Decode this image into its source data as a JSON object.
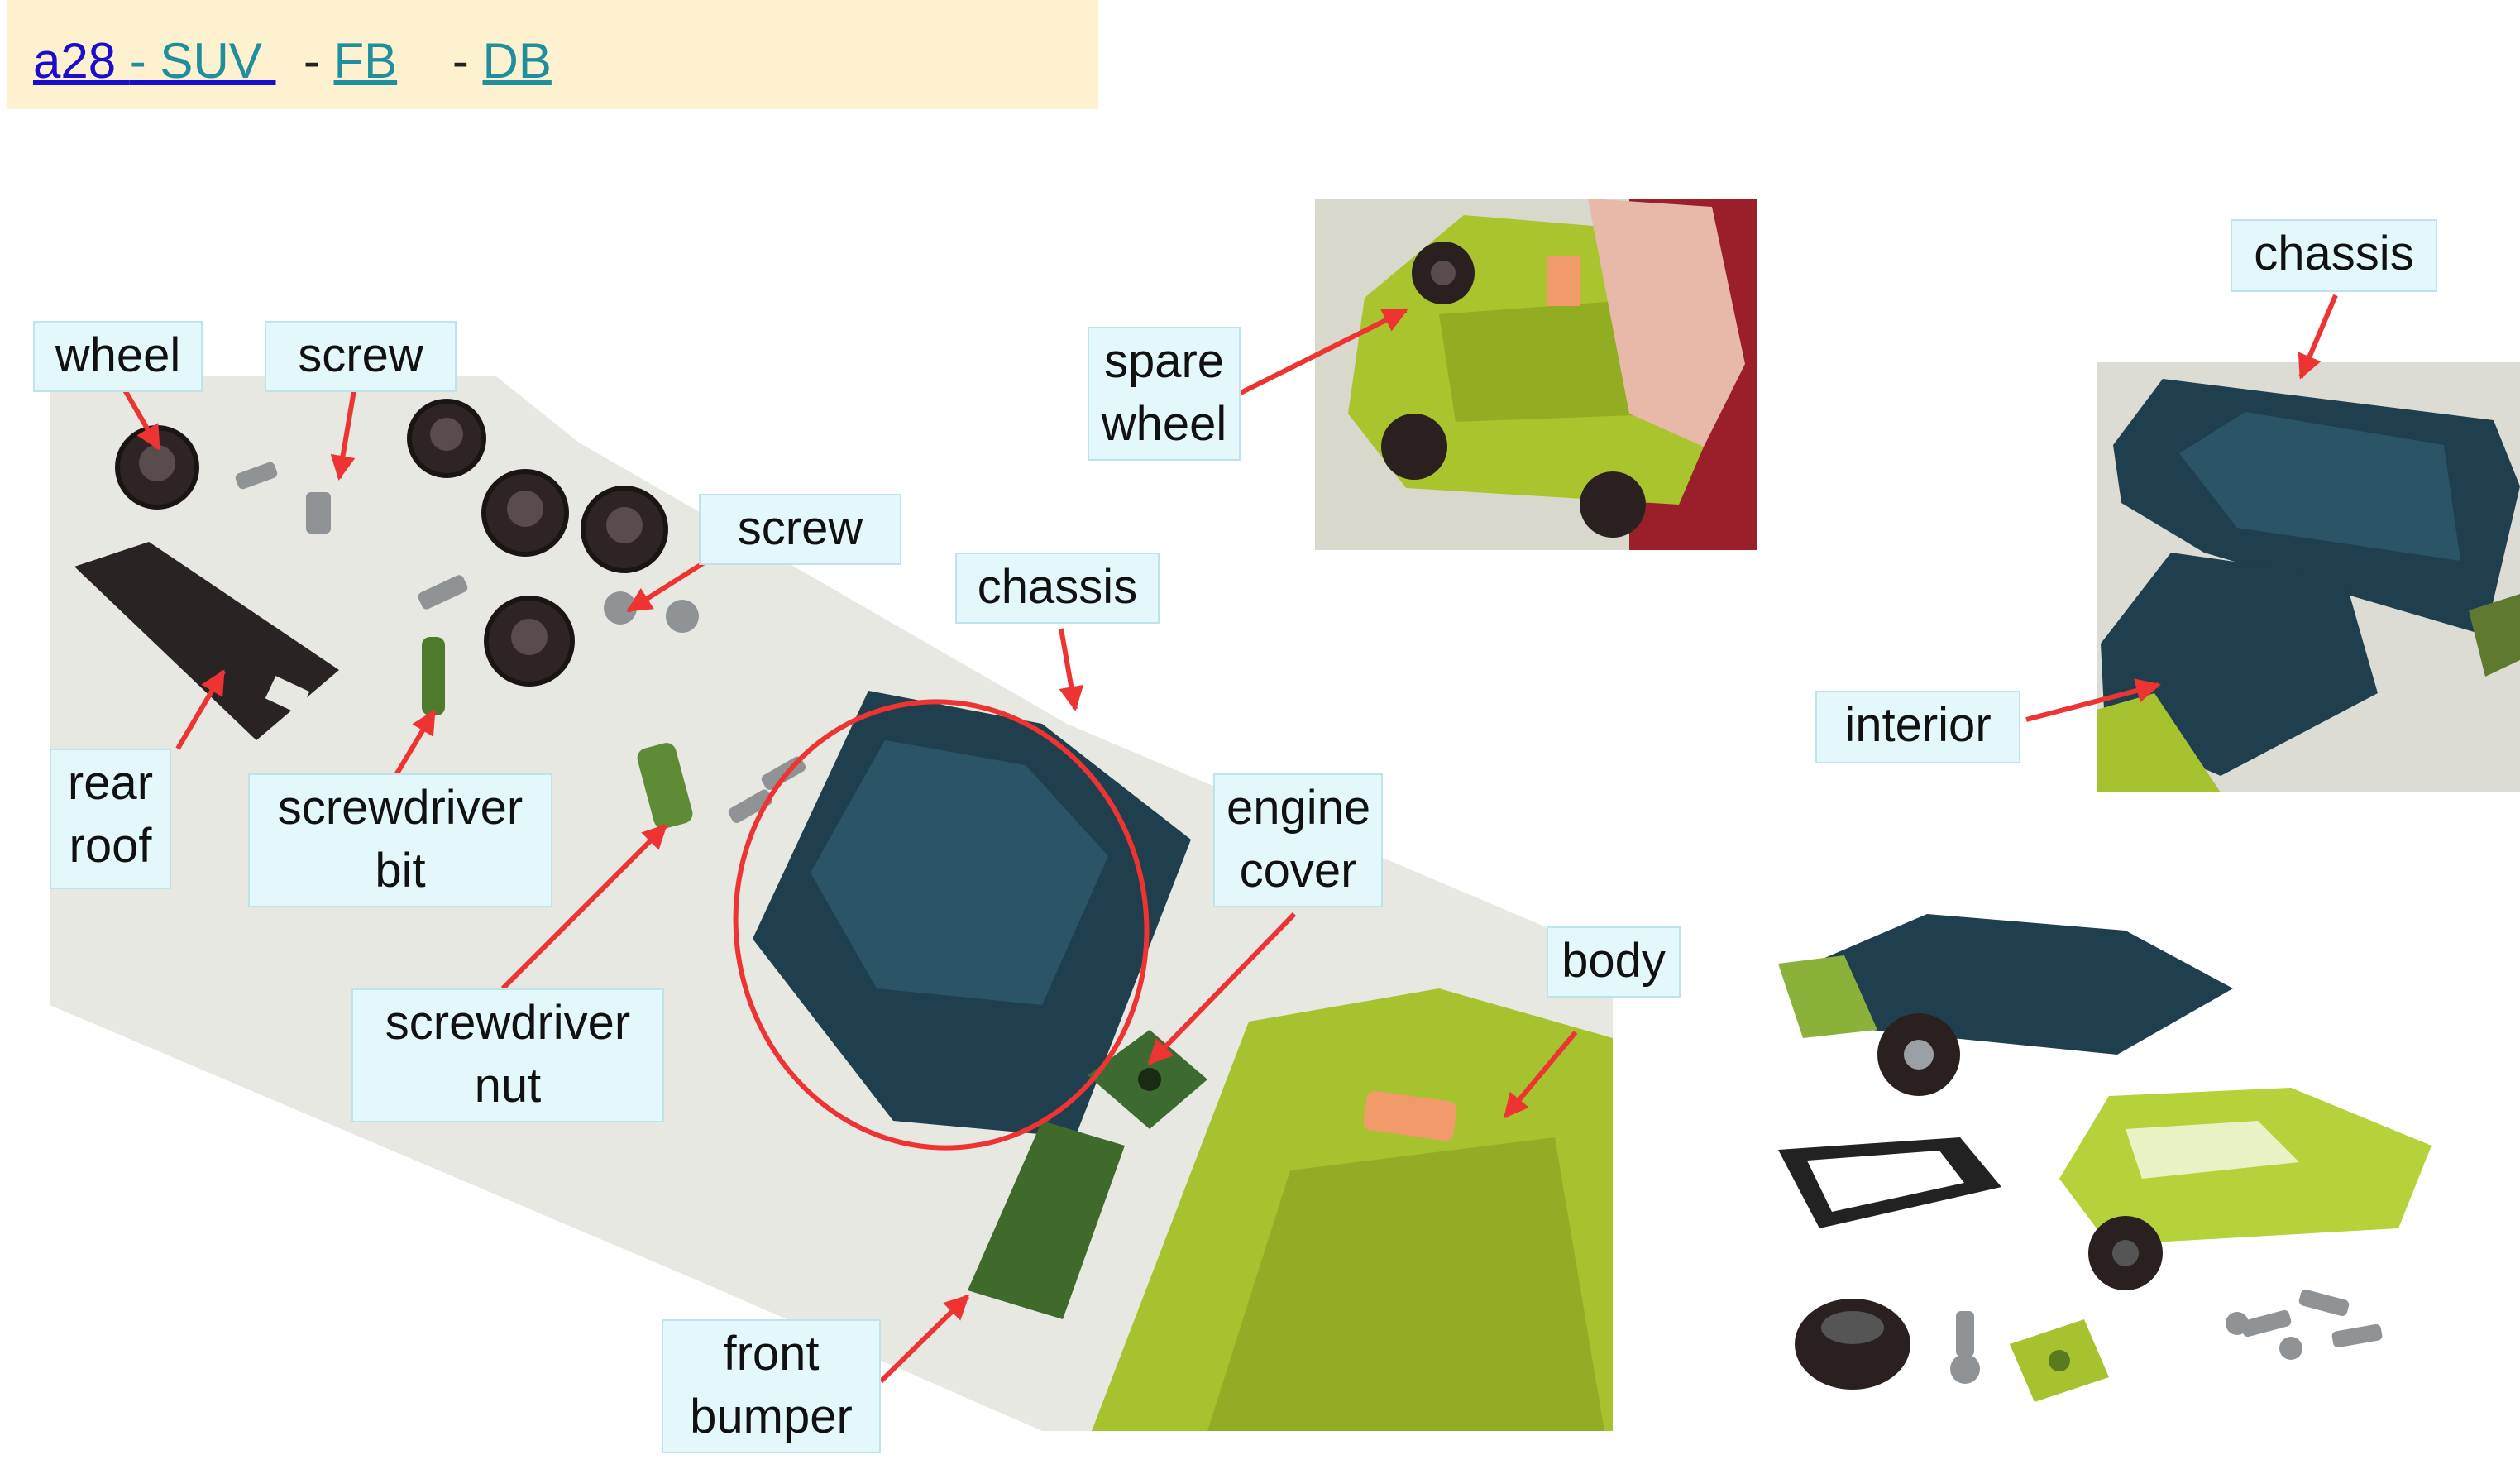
{
  "header": {
    "link_main": "a28 ",
    "link_suv": "- SUV ",
    "sep1": "-",
    "link_fb": "FB",
    "sep2": "-",
    "link_db": "DB"
  },
  "labels": {
    "wheel": "wheel",
    "screw_top": "screw",
    "screw_mid": "screw",
    "rear_roof_1": "rear",
    "rear_roof_2": "roof",
    "screwdriver_bit_1": "screwdriver",
    "screwdriver_bit_2": "bit",
    "screwdriver_nut_1": "screwdriver",
    "screwdriver_nut_2": "nut",
    "chassis_main": "chassis",
    "engine_cover_1": "engine",
    "engine_cover_2": "cover",
    "body": "body",
    "front_bumper_1": "front",
    "front_bumper_2": "bumper",
    "spare_wheel_1": "spare",
    "spare_wheel_2": "wheel",
    "chassis_right": "chassis",
    "interior": "interior"
  },
  "colors": {
    "arrow": "#ee3333",
    "label_bg": "#e4f8fb",
    "header_bg": "#fdf1cf",
    "link_blue": "#1a0dcc",
    "link_teal": "#1f8f9e",
    "chassis_teal": "#1f3f4f",
    "body_green": "#a6c22e",
    "tire_dark": "#2a2020"
  }
}
